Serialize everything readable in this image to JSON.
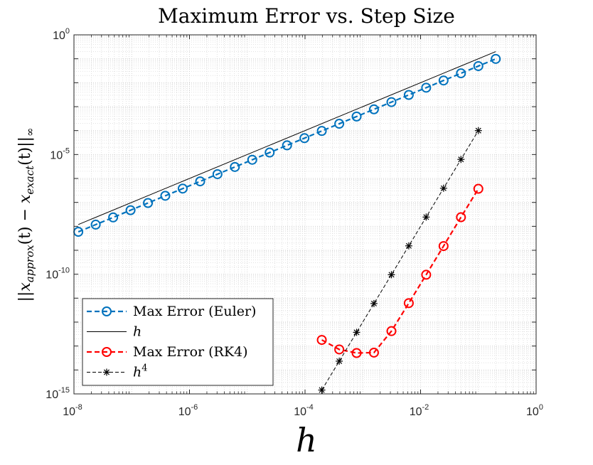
{
  "chart_data": {
    "type": "line",
    "title": "Maximum Error vs. Step Size",
    "xlabel": "h",
    "ylabel": "||x_approx(t) − x_exact(t)||∞",
    "ylabel_parts": {
      "open": "||",
      "sym1": "x",
      "sub1": "approx",
      "mid": "(t) − ",
      "sym2": "x",
      "sub2": "exact",
      "close": "(t)||",
      "norm": "∞"
    },
    "x_scale": "log",
    "y_scale": "log",
    "xlim": [
      1e-08,
      1
    ],
    "ylim": [
      1e-15,
      1
    ],
    "grid": true,
    "minor_grid": true,
    "x_ticks": [
      {
        "base": "10",
        "exp": "-8",
        "value": 1e-08
      },
      {
        "base": "10",
        "exp": "-6",
        "value": 1e-06
      },
      {
        "base": "10",
        "exp": "-4",
        "value": 0.0001
      },
      {
        "base": "10",
        "exp": "-2",
        "value": 0.01
      },
      {
        "base": "10",
        "exp": "0",
        "value": 1
      }
    ],
    "y_ticks": [
      {
        "base": "10",
        "exp": "0",
        "value": 1
      },
      {
        "base": "10",
        "exp": "-5",
        "value": 1e-05
      },
      {
        "base": "10",
        "exp": "-10",
        "value": 1e-10
      },
      {
        "base": "10",
        "exp": "-15",
        "value": 1e-15
      }
    ],
    "legend_position": "bottom-left",
    "series": [
      {
        "name": "Max Error (Euler)",
        "color": "#0072BD",
        "line": "dashed",
        "marker": "circle",
        "x": [
          1.19e-08,
          2.38e-08,
          4.77e-08,
          9.54e-08,
          1.91e-07,
          3.81e-07,
          7.63e-07,
          1.53e-06,
          3.05e-06,
          6.1e-06,
          1.22e-05,
          2.44e-05,
          4.88e-05,
          9.77e-05,
          0.000195,
          0.000391,
          0.000781,
          0.00156,
          0.00313,
          0.00625,
          0.0125,
          0.025,
          0.05,
          0.1,
          0.2
        ],
        "y": [
          5.9e-09,
          1.18e-08,
          2.36e-08,
          4.72e-08,
          9.44e-08,
          1.89e-07,
          3.78e-07,
          7.55e-07,
          1.51e-06,
          3.02e-06,
          6.04e-06,
          1.21e-05,
          2.42e-05,
          4.83e-05,
          9.66e-05,
          0.000193,
          0.000387,
          0.000773,
          0.00155,
          0.00309,
          0.00619,
          0.0124,
          0.0247,
          0.0495,
          0.099
        ]
      },
      {
        "name": "h",
        "color": "#000000",
        "line": "solid",
        "marker": "none",
        "x": [
          1.19e-08,
          0.2
        ],
        "y": [
          1.19e-08,
          0.2
        ]
      },
      {
        "name": "Max Error (RK4)",
        "color": "#FF0000",
        "line": "dashed",
        "marker": "circle",
        "x": [
          0.000195,
          0.000391,
          0.000781,
          0.00156,
          0.00313,
          0.00625,
          0.0125,
          0.025,
          0.05,
          0.1
        ],
        "y": [
          1.8e-13,
          7.2e-14,
          5.1e-14,
          5.3e-14,
          4.2e-13,
          6.2e-12,
          9.5e-11,
          1.5e-09,
          2.4e-08,
          3.7e-07
        ]
      },
      {
        "name": "h^4",
        "color": "#000000",
        "line": "dashed",
        "marker": "asterisk",
        "x": [
          0.000195,
          0.000391,
          0.000781,
          0.00156,
          0.00313,
          0.00625,
          0.0125,
          0.025,
          0.05,
          0.1
        ],
        "y": [
          1.45e-15,
          2.33e-14,
          3.73e-13,
          5.96e-12,
          9.54e-11,
          1.53e-09,
          2.44e-08,
          3.91e-07,
          6.25e-06,
          0.0001
        ]
      }
    ],
    "legend": [
      {
        "text": "Max Error (Euler)",
        "italic": false,
        "sup": ""
      },
      {
        "text": "h",
        "italic": true,
        "sup": ""
      },
      {
        "text": "Max Error (RK4)",
        "italic": false,
        "sup": ""
      },
      {
        "text": "h",
        "italic": true,
        "sup": "4"
      }
    ]
  }
}
